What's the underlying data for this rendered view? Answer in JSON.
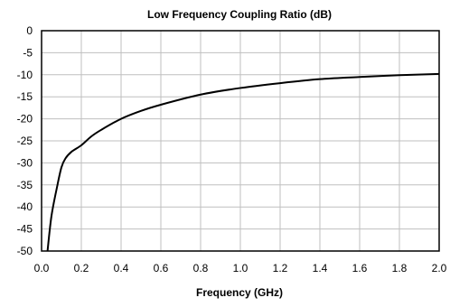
{
  "chart_data": {
    "type": "line",
    "title": "Low Frequency Coupling Ratio (dB)",
    "xlabel": "Frequency (GHz)",
    "ylabel": "",
    "xlim": [
      0.0,
      2.0
    ],
    "ylim": [
      -50,
      0
    ],
    "x_ticks": [
      0.0,
      0.2,
      0.4,
      0.6,
      0.8,
      1.0,
      1.2,
      1.4,
      1.6,
      1.8,
      2.0
    ],
    "x_tick_labels": [
      "0.0",
      "0.2",
      "0.4",
      "0.6",
      "0.8",
      "1.0",
      "1.2",
      "1.4",
      "1.6",
      "1.8",
      "2.0"
    ],
    "y_ticks": [
      0,
      -5,
      -10,
      -15,
      -20,
      -25,
      -30,
      -35,
      -40,
      -45,
      -50
    ],
    "y_tick_labels": [
      "0",
      "-5",
      "-10",
      "-15",
      "-20",
      "-25",
      "-30",
      "-35",
      "-40",
      "-45",
      "-50"
    ],
    "grid": true,
    "legend": "none",
    "series": [
      {
        "color": "#000000",
        "x": [
          0.03,
          0.05,
          0.08,
          0.1,
          0.12,
          0.15,
          0.2,
          0.25,
          0.3,
          0.4,
          0.5,
          0.6,
          0.8,
          1.0,
          1.2,
          1.4,
          1.6,
          1.8,
          2.0
        ],
        "y": [
          -50,
          -42,
          -35,
          -31,
          -29,
          -27.5,
          -26,
          -24,
          -22.5,
          -20,
          -18.2,
          -16.8,
          -14.5,
          -13,
          -11.9,
          -11,
          -10.5,
          -10.1,
          -9.8
        ]
      }
    ]
  }
}
